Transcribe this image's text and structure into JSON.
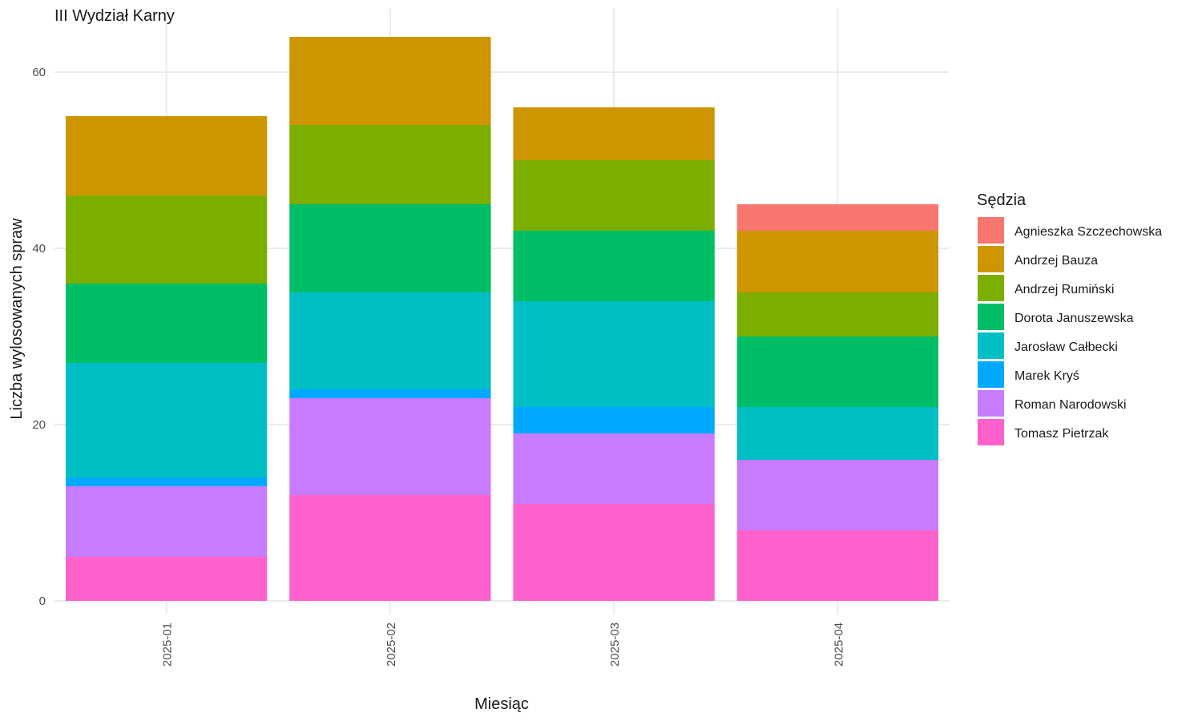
{
  "chart_data": {
    "type": "bar",
    "stacked": true,
    "title": "III Wydział Karny",
    "xlabel": "Miesiąc",
    "ylabel": "Liczba wylosowanych spraw",
    "ylim": [
      0,
      67
    ],
    "yticks": [
      0,
      20,
      40,
      60
    ],
    "grid": true,
    "legend_title": "Sędzia",
    "legend_position": "right",
    "categories": [
      "2025-01",
      "2025-02",
      "2025-03",
      "2025-04"
    ],
    "series": [
      {
        "name": "Agnieszka Szczechowska",
        "color": "#F8766D",
        "values": [
          0,
          0,
          0,
          3
        ]
      },
      {
        "name": "Andrzej Bauza",
        "color": "#CD9600",
        "values": [
          9,
          10,
          6,
          7
        ]
      },
      {
        "name": "Andrzej Rumiński",
        "color": "#7CAE00",
        "values": [
          10,
          9,
          8,
          5
        ]
      },
      {
        "name": "Dorota Januszewska",
        "color": "#00BE67",
        "values": [
          9,
          10,
          8,
          8
        ]
      },
      {
        "name": "Jarosław Całbecki",
        "color": "#00BFC4",
        "values": [
          13,
          11,
          12,
          6
        ]
      },
      {
        "name": "Marek Kryś",
        "color": "#00A9FF",
        "values": [
          1,
          1,
          3,
          0
        ]
      },
      {
        "name": "Roman Narodowski",
        "color": "#C77CFF",
        "values": [
          8,
          11,
          8,
          8
        ]
      },
      {
        "name": "Tomasz Pietrzak",
        "color": "#FF61CC",
        "values": [
          5,
          12,
          11,
          8
        ]
      }
    ]
  }
}
